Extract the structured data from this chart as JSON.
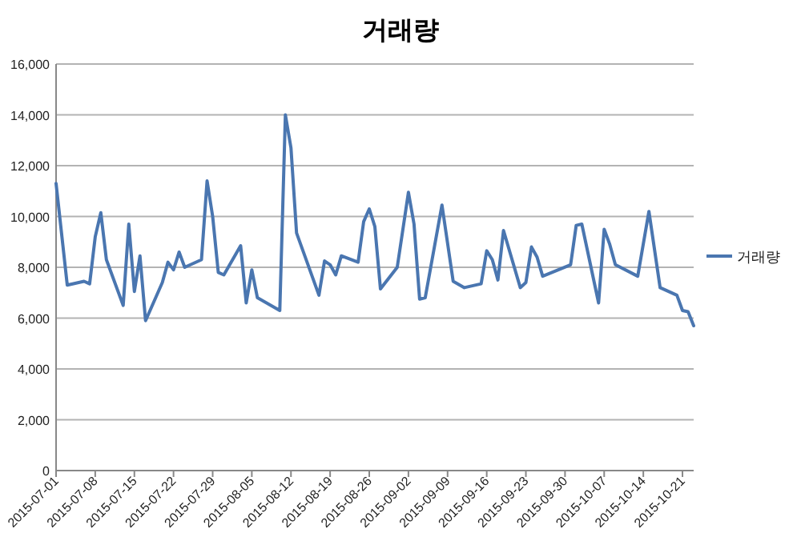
{
  "chart_data": {
    "type": "line",
    "title": "거래량",
    "x": [
      "2015-07-01",
      "2015-07-03",
      "2015-07-06",
      "2015-07-07",
      "2015-07-08",
      "2015-07-09",
      "2015-07-10",
      "2015-07-13",
      "2015-07-14",
      "2015-07-15",
      "2015-07-16",
      "2015-07-17",
      "2015-07-20",
      "2015-07-21",
      "2015-07-22",
      "2015-07-23",
      "2015-07-24",
      "2015-07-27",
      "2015-07-28",
      "2015-07-29",
      "2015-07-30",
      "2015-07-31",
      "2015-08-03",
      "2015-08-04",
      "2015-08-05",
      "2015-08-06",
      "2015-08-10",
      "2015-08-11",
      "2015-08-12",
      "2015-08-13",
      "2015-08-17",
      "2015-08-18",
      "2015-08-19",
      "2015-08-20",
      "2015-08-21",
      "2015-08-24",
      "2015-08-25",
      "2015-08-26",
      "2015-08-27",
      "2015-08-28",
      "2015-08-31",
      "2015-09-02",
      "2015-09-03",
      "2015-09-04",
      "2015-09-05",
      "2015-09-08",
      "2015-09-10",
      "2015-09-12",
      "2015-09-15",
      "2015-09-16",
      "2015-09-17",
      "2015-09-18",
      "2015-09-19",
      "2015-09-22",
      "2015-09-23",
      "2015-09-24",
      "2015-09-25",
      "2015-09-26",
      "2015-10-01",
      "2015-10-02",
      "2015-10-03",
      "2015-10-06",
      "2015-10-07",
      "2015-10-08",
      "2015-10-09",
      "2015-10-13",
      "2015-10-15",
      "2015-10-17",
      "2015-10-20",
      "2015-10-21",
      "2015-10-22",
      "2015-10-23"
    ],
    "series": [
      {
        "name": "거래량",
        "color": "#4a76b0",
        "values": [
          11300,
          7300,
          7450,
          7350,
          9200,
          10150,
          8300,
          6500,
          9700,
          7050,
          8450,
          5900,
          7400,
          8200,
          7900,
          8600,
          8000,
          8300,
          11400,
          10000,
          7800,
          7700,
          8850,
          6600,
          7900,
          6800,
          6300,
          14000,
          12700,
          9350,
          6900,
          8250,
          8100,
          7700,
          8450,
          8200,
          9800,
          10300,
          9600,
          7150,
          8000,
          10950,
          9700,
          6750,
          6800,
          10450,
          7450,
          7200,
          7350,
          8650,
          8300,
          7500,
          9450,
          7200,
          7400,
          8800,
          8400,
          7650,
          8100,
          9650,
          9700,
          6600,
          9500,
          8900,
          8100,
          7650,
          10200,
          7200,
          6900,
          6300,
          6250,
          5700
        ]
      }
    ],
    "xlim": [
      "2015-07-01",
      "2015-10-23"
    ],
    "xticks": [
      "2015-07-01",
      "2015-07-08",
      "2015-07-15",
      "2015-07-22",
      "2015-07-29",
      "2015-08-05",
      "2015-08-12",
      "2015-08-19",
      "2015-08-26",
      "2015-09-02",
      "2015-09-09",
      "2015-09-16",
      "2015-09-23",
      "2015-09-30",
      "2015-10-07",
      "2015-10-14",
      "2015-10-21"
    ],
    "ylim": [
      0,
      16000
    ],
    "yticks": [
      0,
      {
        "value": 2000,
        "label": "2,000"
      },
      {
        "value": 4000,
        "label": "4,000"
      },
      {
        "value": 6000,
        "label": "6,000"
      },
      {
        "value": 8000,
        "label": "8,000"
      },
      {
        "value": 10000,
        "label": "10,000"
      },
      {
        "value": 12000,
        "label": "12,000"
      },
      {
        "value": 14000,
        "label": "14,000"
      },
      {
        "value": 16000,
        "label": "16,000"
      }
    ],
    "grid": "y",
    "legend": "right"
  }
}
